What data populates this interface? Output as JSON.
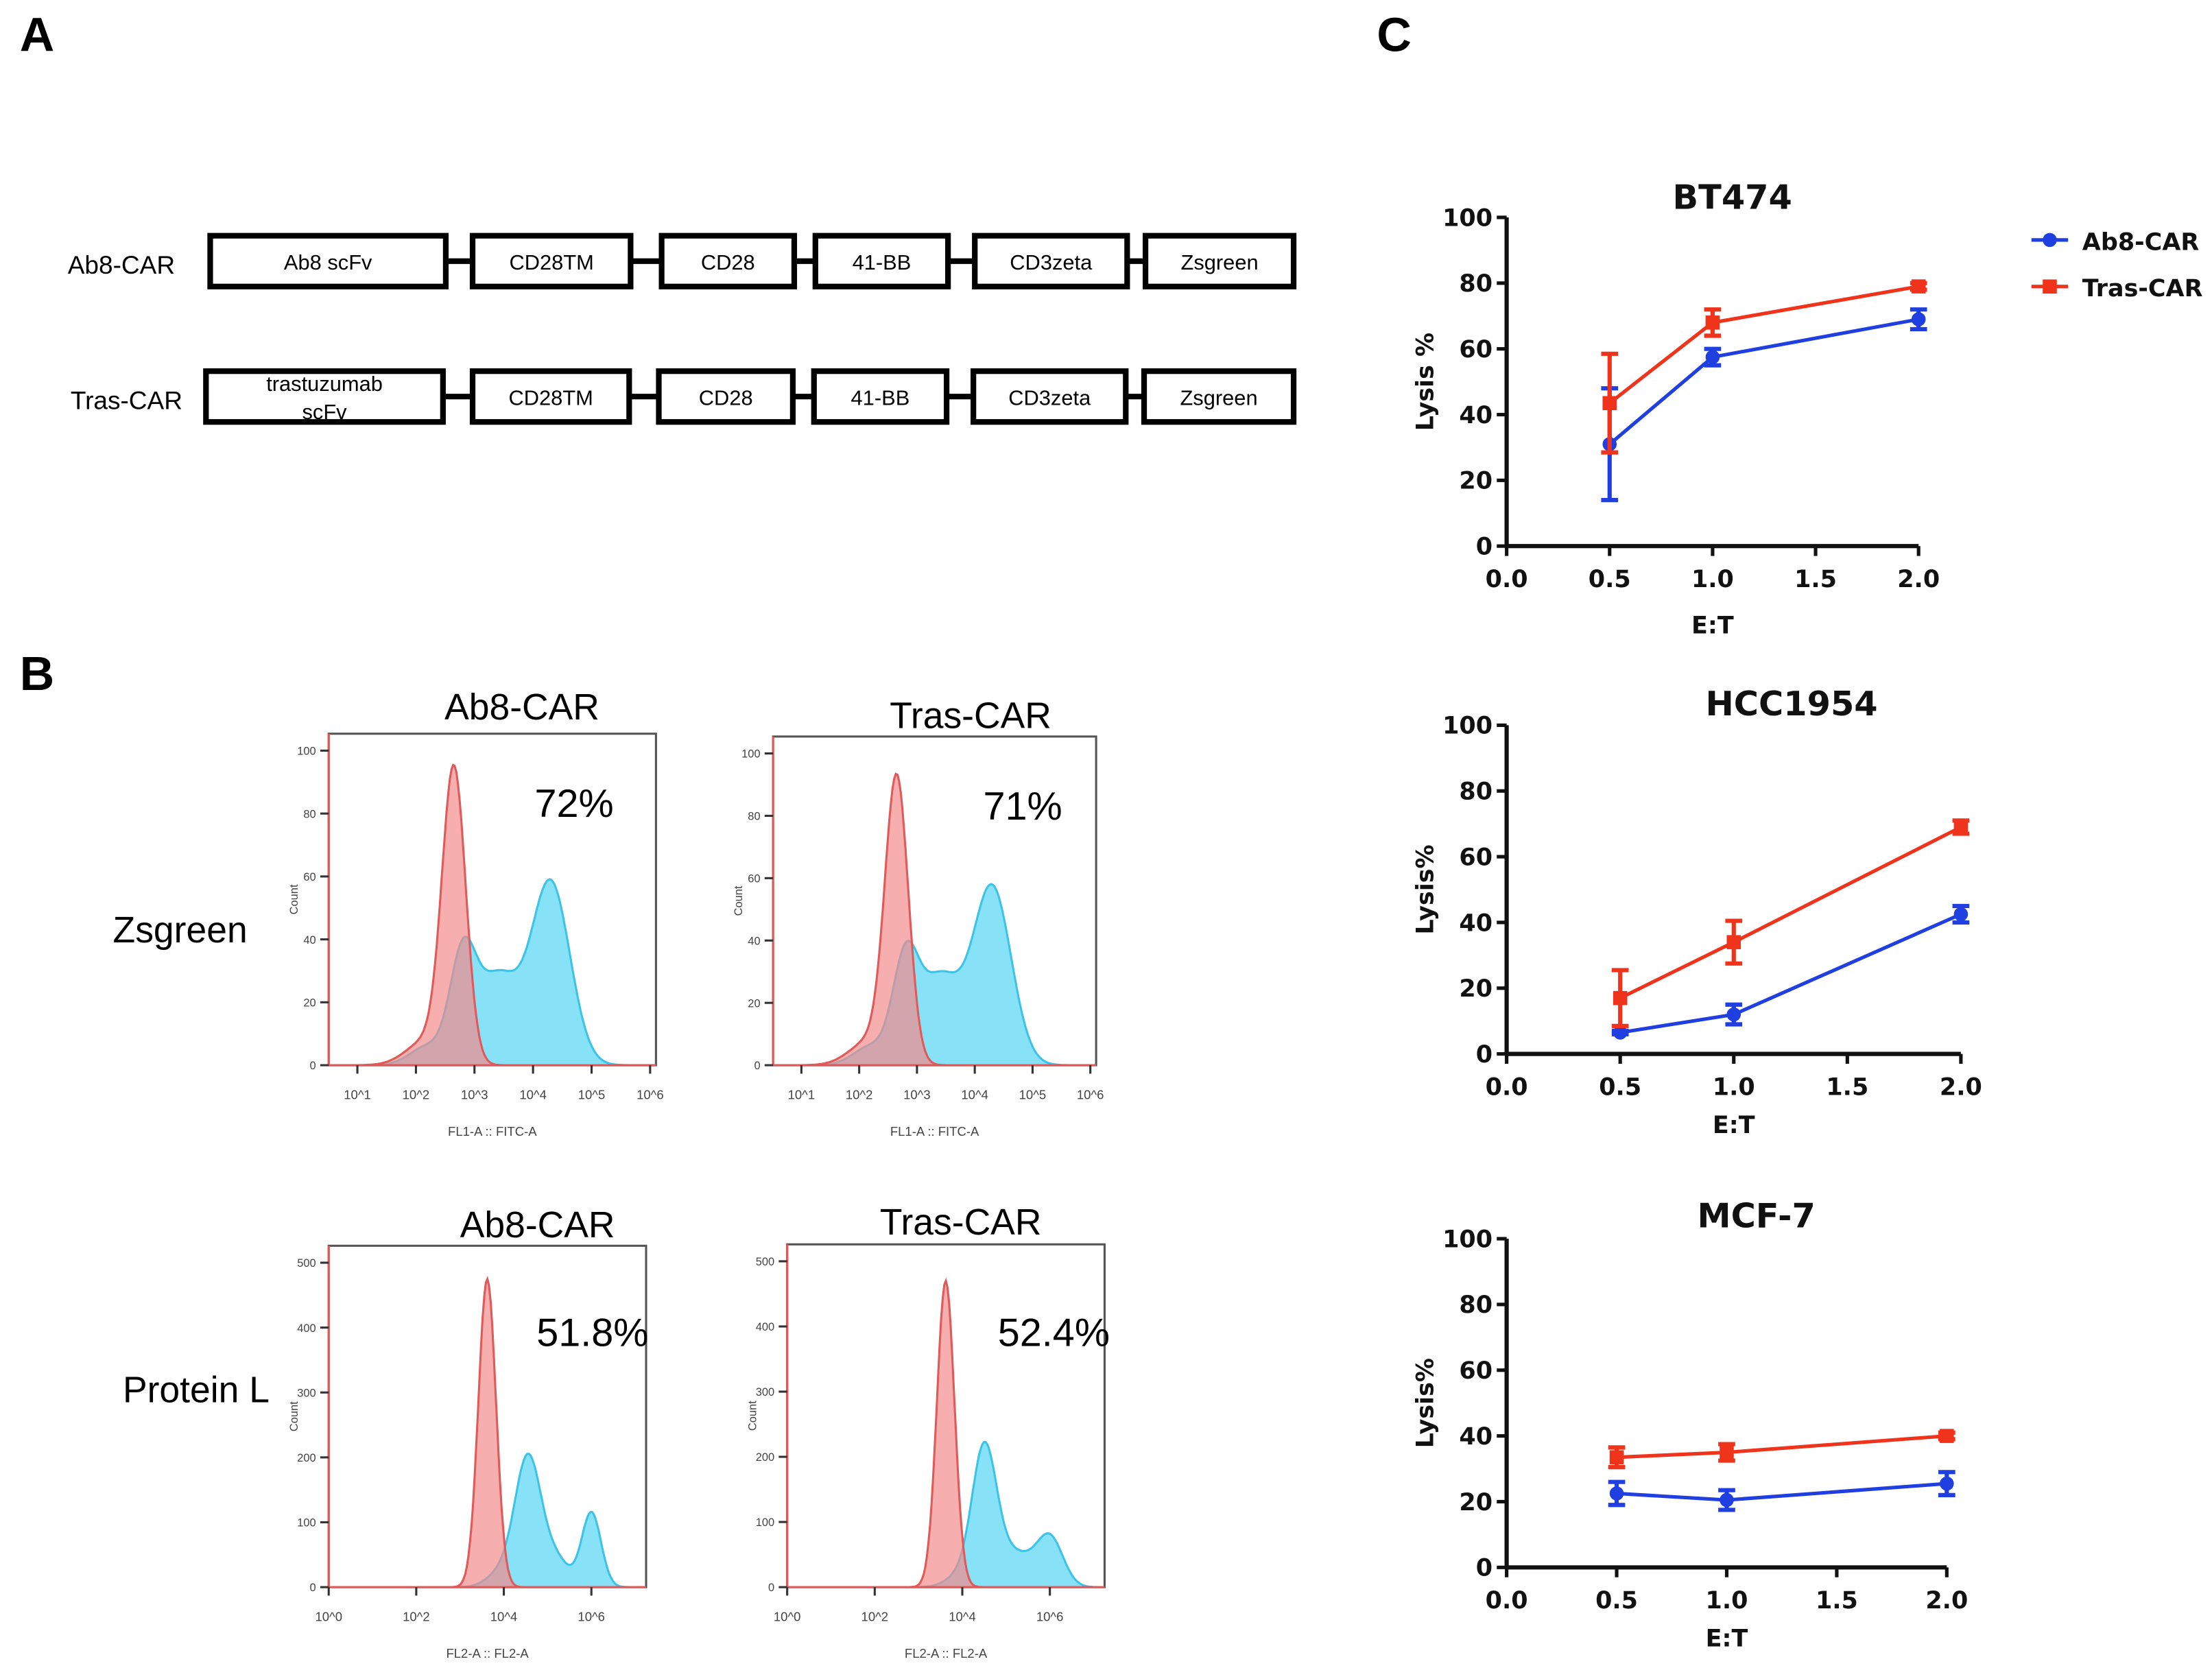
{
  "panels": {
    "a": "A",
    "b": "B",
    "c": "C"
  },
  "panel_a": {
    "constructs": [
      {
        "name": "Ab8-CAR",
        "domains": [
          "Ab8 scFv",
          "CD28TM",
          "CD28",
          "41-BB",
          "CD3zeta",
          "Zsgreen"
        ]
      },
      {
        "name": "Tras-CAR",
        "domains": [
          "trastuzumab scFv",
          "CD28TM",
          "CD28",
          "41-BB",
          "CD3zeta",
          "Zsgreen"
        ]
      }
    ]
  },
  "panel_b": {
    "row_labels": [
      "Zsgreen",
      "Protein L"
    ],
    "colors": {
      "control": "#f28b8b",
      "car": "#5fd8f5",
      "overlap": "#8fa7bd"
    },
    "histograms": [
      {
        "title": "Ab8-CAR",
        "percent": "72%",
        "ylabel": "Count",
        "xlabel": "FL1-A :: FITC-A",
        "yticks": [
          "0",
          "20",
          "40",
          "60",
          "80",
          "100"
        ],
        "xticks": [
          "10^1",
          "10^2",
          "10^3",
          "10^4",
          "10^5",
          "10^6"
        ],
        "ymax": 100
      },
      {
        "title": "Tras-CAR",
        "percent": "71%",
        "ylabel": "Count",
        "xlabel": "FL1-A :: FITC-A",
        "yticks": [
          "0",
          "20",
          "40",
          "60",
          "80",
          "100"
        ],
        "xticks": [
          "10^1",
          "10^2",
          "10^3",
          "10^4",
          "10^5",
          "10^6"
        ],
        "ymax": 100
      },
      {
        "title": "Ab8-CAR",
        "percent": "51.8%",
        "ylabel": "Count",
        "xlabel": "FL2-A :: FL2-A",
        "yticks": [
          "0",
          "100",
          "200",
          "300",
          "400",
          "500"
        ],
        "xticks": [
          "10^0",
          "10^2",
          "10^4",
          "10^6"
        ],
        "ymax": 500
      },
      {
        "title": "Tras-CAR",
        "percent": "52.4%",
        "ylabel": "Count",
        "xlabel": "FL2-A :: FL2-A",
        "yticks": [
          "0",
          "100",
          "200",
          "300",
          "400",
          "500"
        ],
        "xticks": [
          "10^0",
          "10^2",
          "10^4",
          "10^6"
        ],
        "ymax": 500
      }
    ]
  },
  "legend": {
    "position": "top-right",
    "items": [
      {
        "name": "Ab8-CAR",
        "color": "#1f3fe0",
        "marker": "circle"
      },
      {
        "name": "Tras-CAR",
        "color": "#f0341c",
        "marker": "square"
      }
    ]
  },
  "chart_data": [
    {
      "type": "line",
      "title": "BT474",
      "xlabel": "E:T",
      "ylabel": "Lysis %",
      "xlim": [
        0,
        2
      ],
      "ylim": [
        0,
        100
      ],
      "xticks": [
        "0.0",
        "0.5",
        "1.0",
        "1.5",
        "2.0"
      ],
      "yticks": [
        "0",
        "20",
        "40",
        "60",
        "80",
        "100"
      ],
      "x": [
        0.5,
        1.0,
        2.0
      ],
      "series": [
        {
          "name": "Ab8-CAR",
          "values": [
            31,
            57.5,
            69
          ],
          "error": [
            17,
            2.5,
            3
          ]
        },
        {
          "name": "Tras-CAR",
          "values": [
            43.5,
            68,
            79
          ],
          "error": [
            15,
            4,
            1
          ]
        }
      ]
    },
    {
      "type": "line",
      "title": "HCC1954",
      "xlabel": "E:T",
      "ylabel": "Lysis%",
      "xlim": [
        0,
        2
      ],
      "ylim": [
        0,
        100
      ],
      "xticks": [
        "0.0",
        "0.5",
        "1.0",
        "1.5",
        "2.0"
      ],
      "yticks": [
        "0",
        "20",
        "40",
        "60",
        "80",
        "100"
      ],
      "x": [
        0.5,
        1.0,
        2.0
      ],
      "series": [
        {
          "name": "Ab8-CAR",
          "values": [
            6.5,
            12,
            42.5
          ],
          "error": [
            0.5,
            3,
            2.5
          ]
        },
        {
          "name": "Tras-CAR",
          "values": [
            17,
            34,
            69
          ],
          "error": [
            8.5,
            6.5,
            2
          ]
        }
      ]
    },
    {
      "type": "line",
      "title": "MCF-7",
      "xlabel": "E:T",
      "ylabel": "Lysis%",
      "xlim": [
        0,
        2
      ],
      "ylim": [
        0,
        100
      ],
      "xticks": [
        "0.0",
        "0.5",
        "1.0",
        "1.5",
        "2.0"
      ],
      "yticks": [
        "0",
        "20",
        "40",
        "60",
        "80",
        "100"
      ],
      "x": [
        0.5,
        1.0,
        2.0
      ],
      "series": [
        {
          "name": "Ab8-CAR",
          "values": [
            22.5,
            20.5,
            25.5
          ],
          "error": [
            3.5,
            3,
            3.5
          ]
        },
        {
          "name": "Tras-CAR",
          "values": [
            33.5,
            35,
            40
          ],
          "error": [
            3,
            2.5,
            1
          ]
        }
      ]
    }
  ]
}
